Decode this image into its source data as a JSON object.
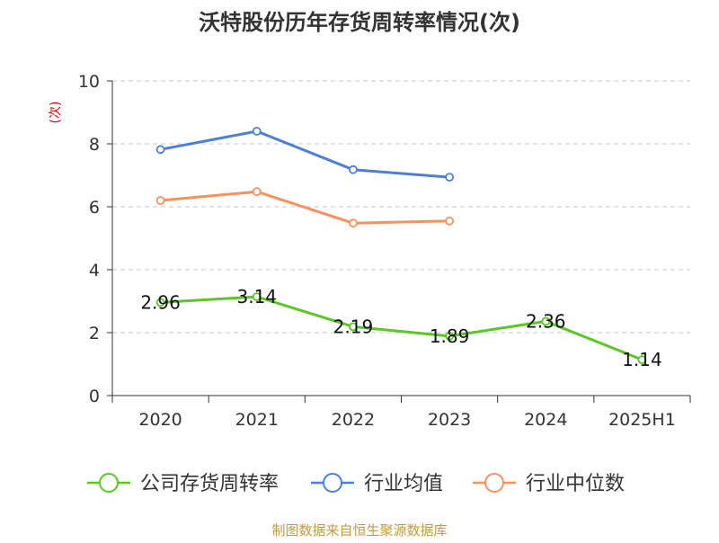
{
  "chart_data": {
    "type": "line",
    "title": "沃特股份历年存货周转率情况(次)",
    "ylabel": "(次)",
    "xlabel": "",
    "categories": [
      "2020",
      "2021",
      "2022",
      "2023",
      "2024",
      "2025H1"
    ],
    "ylim": [
      0,
      10
    ],
    "yticks": [
      0,
      2,
      4,
      6,
      8,
      10
    ],
    "grid": true,
    "legend_position": "bottom",
    "series": [
      {
        "name": "公司存货周转率",
        "values": [
          2.96,
          3.14,
          2.19,
          1.89,
          2.36,
          1.14
        ],
        "value_labels": [
          "2.96",
          "3.14",
          "2.19",
          "1.89",
          "2.36",
          "1.14"
        ],
        "color": "#5bc726",
        "show_labels": true
      },
      {
        "name": "行业均值",
        "values": [
          7.82,
          8.4,
          7.18,
          6.94,
          null,
          null
        ],
        "color": "#4e7fd6",
        "show_labels": false
      },
      {
        "name": "行业中位数",
        "values": [
          6.2,
          6.48,
          5.48,
          5.55,
          null,
          null
        ],
        "color": "#f59260",
        "show_labels": false
      }
    ],
    "source": "制图数据来自恒生聚源数据库"
  }
}
